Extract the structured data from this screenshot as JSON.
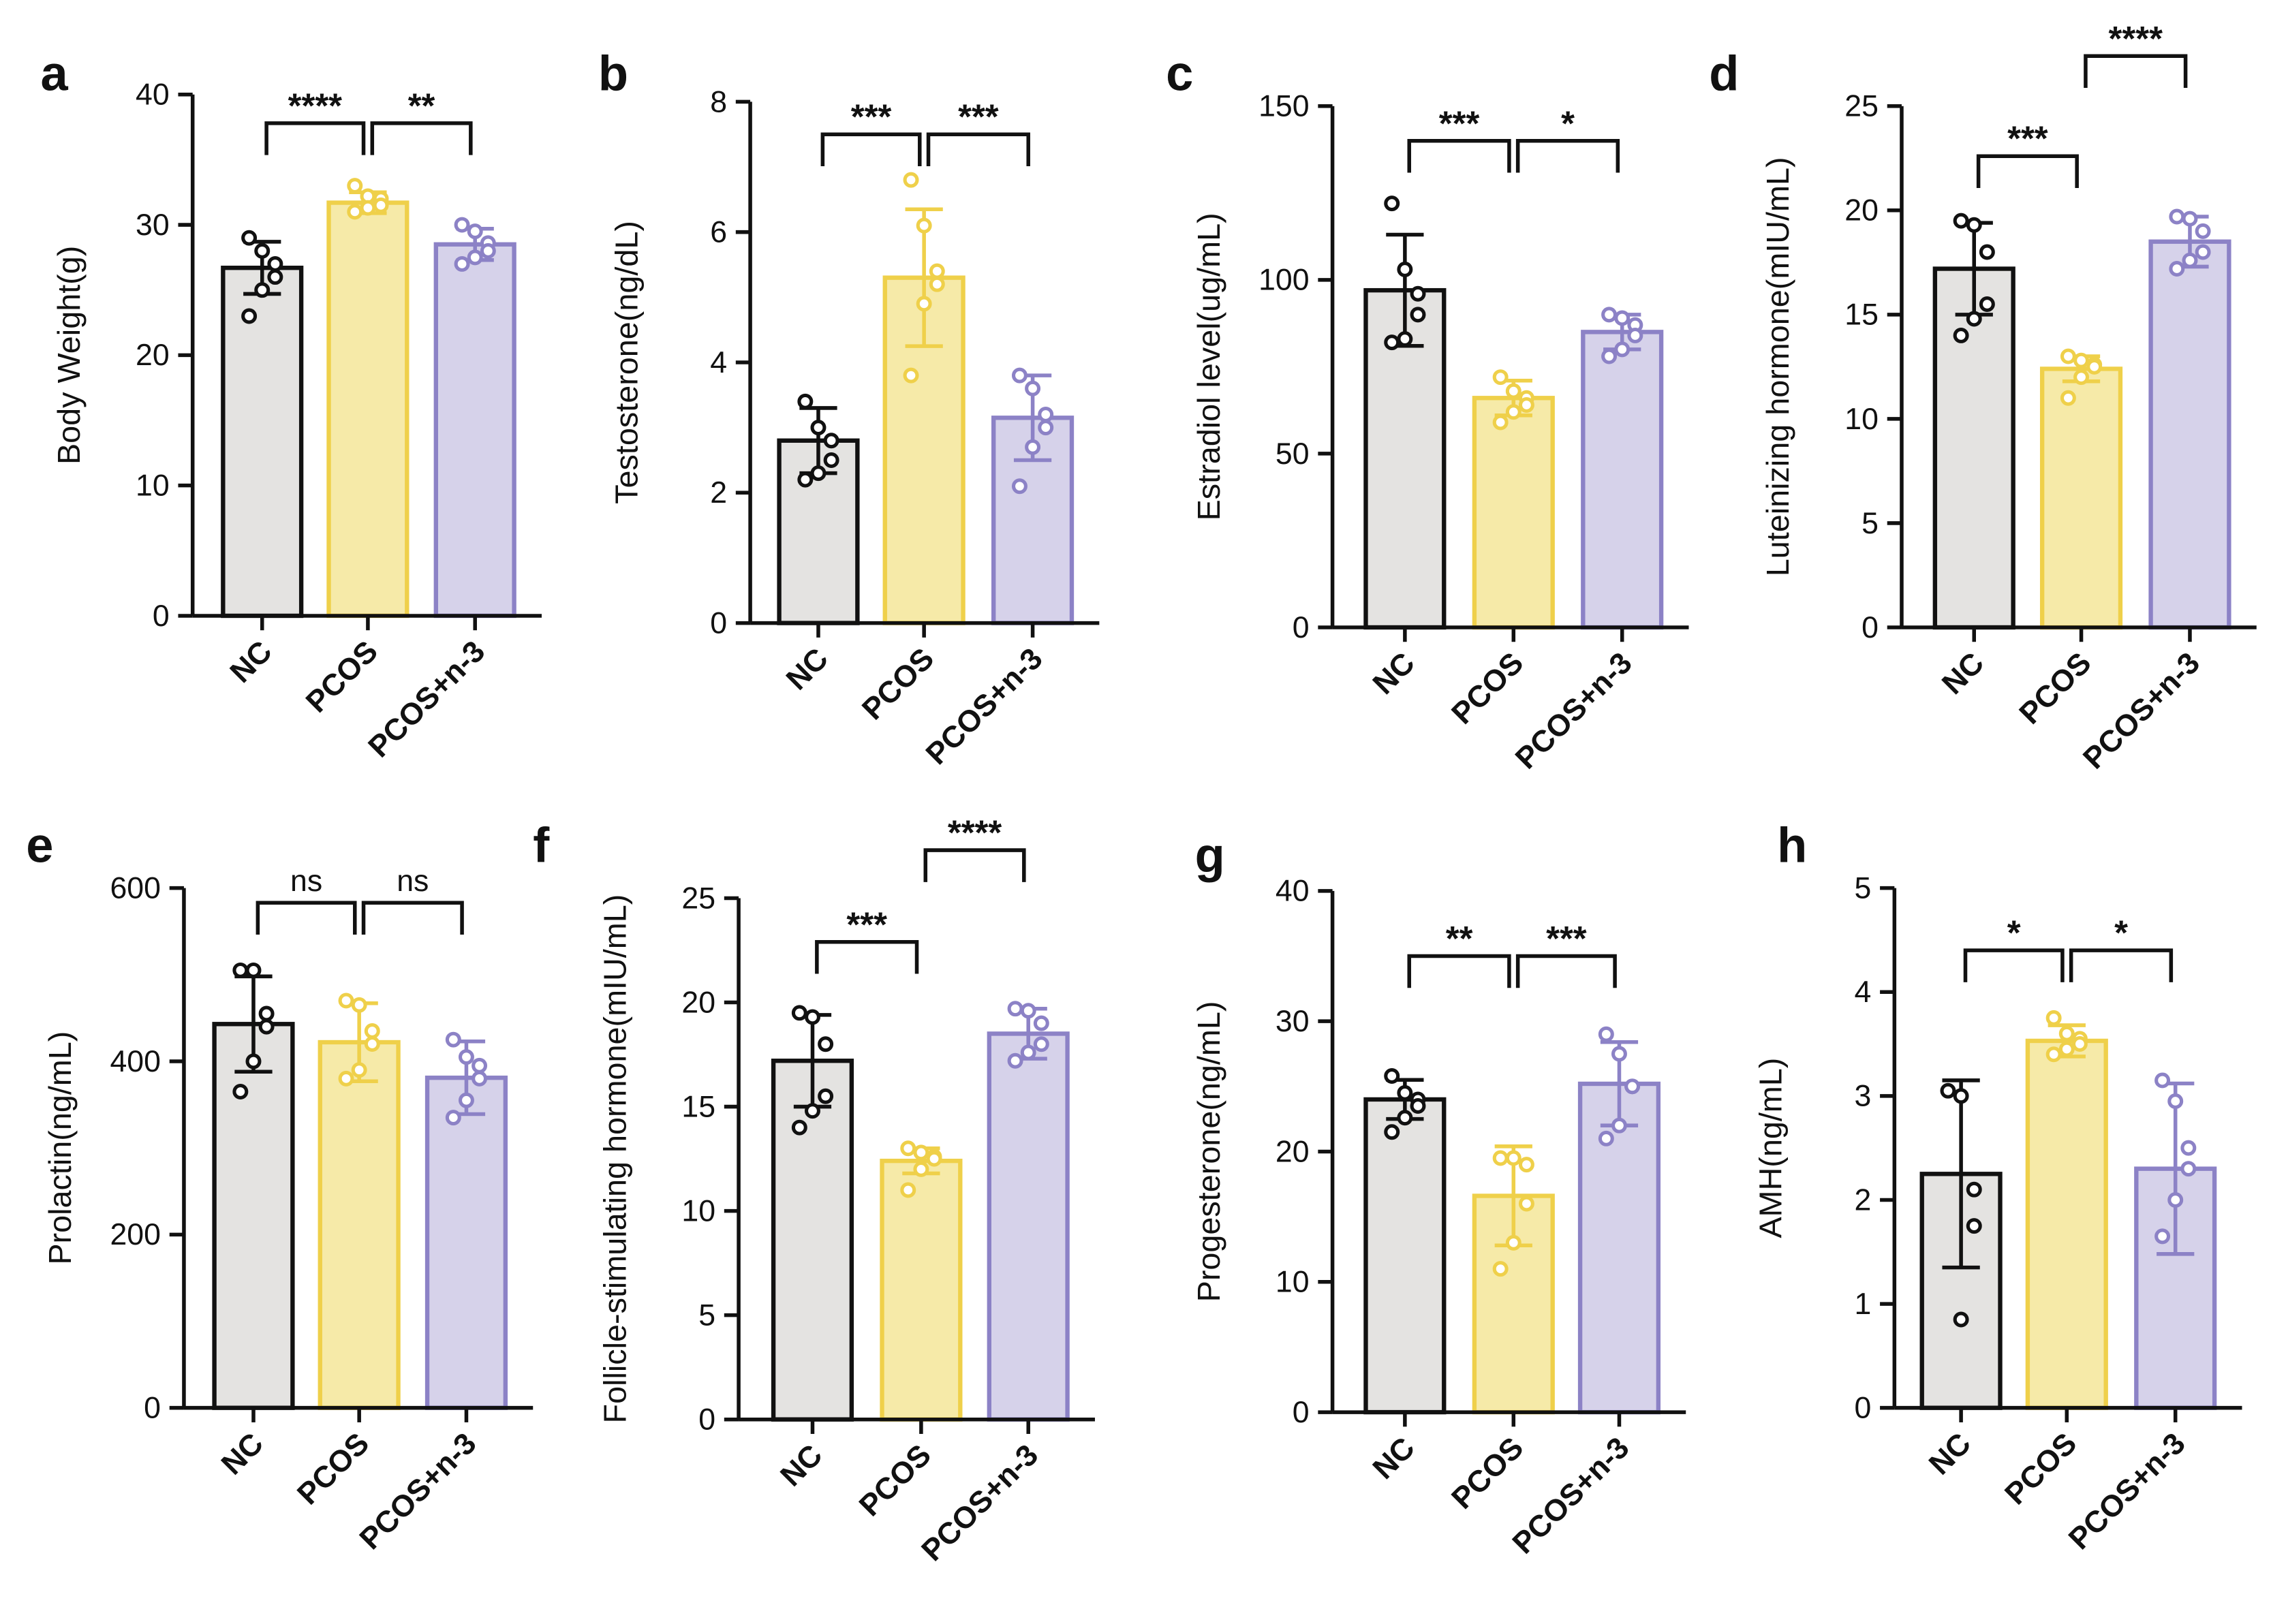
{
  "colors": {
    "NC": {
      "fill": "#e4e3e1",
      "stroke": "#111111"
    },
    "PCOS": {
      "fill": "#f6eaa8",
      "stroke": "#efd04a"
    },
    "PCOS+n-3": {
      "fill": "#d6d2ea",
      "stroke": "#8c82c6"
    }
  },
  "chart_data": [
    {
      "panel": "a",
      "type": "bar",
      "ylabel": "Body Weight(g)",
      "ylim": [
        0,
        40
      ],
      "ticks": [
        0,
        10,
        20,
        30,
        40
      ],
      "categories": [
        "NC",
        "PCOS",
        "PCOS+n-3"
      ],
      "values": [
        26.7,
        31.7,
        28.5
      ],
      "sd": [
        2.0,
        0.8,
        1.2
      ],
      "points": [
        [
          29,
          28,
          27,
          26,
          25,
          23
        ],
        [
          33,
          32.2,
          32,
          31.5,
          31.3,
          31
        ],
        [
          30,
          29.5,
          28.6,
          28,
          27.5,
          27
        ]
      ],
      "comparisons": [
        {
          "from": 0,
          "to": 1,
          "label": "****",
          "y": 37.8
        },
        {
          "from": 1,
          "to": 2,
          "label": "**",
          "y": 37.8
        }
      ]
    },
    {
      "panel": "b",
      "type": "bar",
      "ylabel": "Testosterone(ng/dL)",
      "ylim": [
        0,
        8
      ],
      "ticks": [
        0,
        2,
        4,
        6,
        8
      ],
      "categories": [
        "NC",
        "PCOS",
        "PCOS+n-3"
      ],
      "values": [
        2.8,
        5.3,
        3.15
      ],
      "sd": [
        0.5,
        1.05,
        0.65
      ],
      "points": [
        [
          3.4,
          3.0,
          2.8,
          2.5,
          2.3,
          2.2
        ],
        [
          6.8,
          6.1,
          5.4,
          5.2,
          4.9,
          3.8
        ],
        [
          3.8,
          3.6,
          3.2,
          3.0,
          2.7,
          2.1
        ]
      ],
      "comparisons": [
        {
          "from": 0,
          "to": 1,
          "label": "***",
          "y": 7.5
        },
        {
          "from": 1,
          "to": 2,
          "label": "***",
          "y": 7.5
        }
      ]
    },
    {
      "panel": "c",
      "type": "bar",
      "ylabel": "Estradiol level(ug/mL)",
      "ylim": [
        0,
        150
      ],
      "ticks": [
        0,
        50,
        100,
        150
      ],
      "categories": [
        "NC",
        "PCOS",
        "PCOS+n-3"
      ],
      "values": [
        97,
        66,
        85
      ],
      "sd": [
        16,
        5,
        5
      ],
      "points": [
        [
          122,
          103,
          96,
          90,
          83,
          82
        ],
        [
          72,
          68,
          66,
          64,
          62,
          59
        ],
        [
          90,
          89,
          87,
          84,
          80,
          78
        ]
      ],
      "comparisons": [
        {
          "from": 0,
          "to": 1,
          "label": "***",
          "y": 140
        },
        {
          "from": 1,
          "to": 2,
          "label": "*",
          "y": 140
        }
      ]
    },
    {
      "panel": "d",
      "type": "bar",
      "ylabel": "Luteinizing hormone(mIU/mL)",
      "ylim": [
        0,
        25
      ],
      "ticks": [
        0,
        5,
        10,
        15,
        20,
        25
      ],
      "categories": [
        "NC",
        "PCOS",
        "PCOS+n-3"
      ],
      "values": [
        17.2,
        12.4,
        18.5
      ],
      "sd": [
        2.2,
        0.6,
        1.2
      ],
      "points": [
        [
          19.5,
          19.3,
          18,
          15.5,
          14.8,
          14
        ],
        [
          13,
          12.8,
          12.6,
          12.5,
          12,
          11
        ],
        [
          19.7,
          19.6,
          19,
          18,
          17.6,
          17.2
        ]
      ],
      "comparisons": [
        {
          "from": 0,
          "to": 1,
          "label": "***",
          "y": 22.6
        },
        {
          "from": 1,
          "to": 2,
          "label": "****",
          "y": 27.4
        }
      ]
    },
    {
      "panel": "e",
      "type": "bar",
      "ylabel": "Prolactin(ng/mL)",
      "ylim": [
        0,
        600
      ],
      "ticks": [
        0,
        200,
        400,
        600
      ],
      "categories": [
        "NC",
        "PCOS",
        "PCOS+n-3"
      ],
      "values": [
        443,
        422,
        381
      ],
      "sd": [
        55,
        45,
        42
      ],
      "points": [
        [
          505,
          505,
          455,
          440,
          400,
          365
        ],
        [
          470,
          465,
          435,
          420,
          390,
          380
        ],
        [
          425,
          405,
          395,
          380,
          355,
          335
        ]
      ],
      "comparisons": [
        {
          "from": 0,
          "to": 1,
          "label": "ns",
          "y": 583
        },
        {
          "from": 1,
          "to": 2,
          "label": "ns",
          "y": 583
        }
      ]
    },
    {
      "panel": "f",
      "type": "bar",
      "ylabel": "Follicle-stimulating hormone(mIU/mL)",
      "ylim": [
        0,
        25
      ],
      "ticks": [
        0,
        5,
        10,
        15,
        20,
        25
      ],
      "categories": [
        "NC",
        "PCOS",
        "PCOS+n-3"
      ],
      "values": [
        17.2,
        12.4,
        18.5
      ],
      "sd": [
        2.2,
        0.6,
        1.2
      ],
      "points": [
        [
          19.5,
          19.3,
          18,
          15.5,
          14.8,
          14
        ],
        [
          13,
          12.8,
          12.6,
          12.5,
          12,
          11
        ],
        [
          19.7,
          19.6,
          19,
          18,
          17.6,
          17.2
        ]
      ],
      "comparisons": [
        {
          "from": 0,
          "to": 1,
          "label": "***",
          "y": 22.9
        },
        {
          "from": 1,
          "to": 2,
          "label": "****",
          "y": 27.3
        }
      ]
    },
    {
      "panel": "g",
      "type": "bar",
      "ylabel": "Progesterone(ng/mL)",
      "ylim": [
        0,
        40
      ],
      "ticks": [
        0,
        10,
        20,
        30,
        40
      ],
      "categories": [
        "NC",
        "PCOS",
        "PCOS+n-3"
      ],
      "values": [
        24,
        16.6,
        25.2
      ],
      "sd": [
        1.5,
        3.8,
        3.2
      ],
      "points": [
        [
          25.8,
          24.5,
          24,
          23.5,
          22.6,
          21.5
        ],
        [
          19.5,
          19.5,
          19,
          16,
          13,
          11
        ],
        [
          29,
          27.5,
          25,
          25,
          22,
          21
        ]
      ],
      "comparisons": [
        {
          "from": 0,
          "to": 1,
          "label": "**",
          "y": 35
        },
        {
          "from": 1,
          "to": 2,
          "label": "***",
          "y": 35
        }
      ]
    },
    {
      "panel": "h",
      "type": "bar",
      "ylabel": "AMH(ng/mL)",
      "ylim": [
        0,
        5
      ],
      "ticks": [
        0,
        1,
        2,
        3,
        4,
        5
      ],
      "categories": [
        "NC",
        "PCOS",
        "PCOS+n-3"
      ],
      "values": [
        2.25,
        3.53,
        2.3
      ],
      "sd": [
        0.9,
        0.15,
        0.82
      ],
      "points": [
        [
          3.05,
          3.0,
          2.1,
          1.75,
          0.85
        ],
        [
          3.75,
          3.6,
          3.55,
          3.5,
          3.45,
          3.4
        ],
        [
          3.15,
          2.95,
          2.5,
          2.3,
          2.0,
          1.65
        ]
      ],
      "comparisons": [
        {
          "from": 0,
          "to": 1,
          "label": "*",
          "y": 4.4
        },
        {
          "from": 1,
          "to": 2,
          "label": "*",
          "y": 4.4
        }
      ]
    }
  ]
}
